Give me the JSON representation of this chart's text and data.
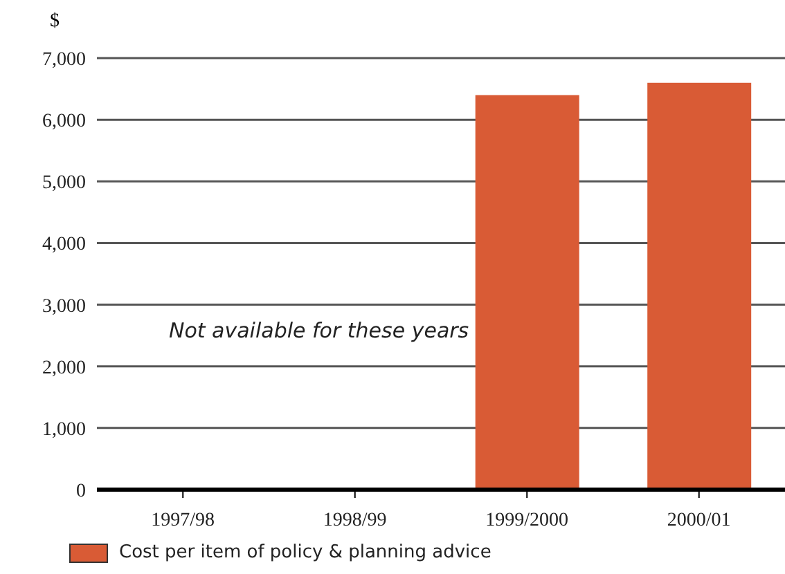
{
  "chart_data": {
    "type": "bar",
    "ylabel": "$",
    "categories": [
      "1997/98",
      "1998/99",
      "1999/2000",
      "2000/01"
    ],
    "series": [
      {
        "name": "Cost per item of policy & planning advice",
        "color": "#d95b35",
        "values": [
          null,
          null,
          6400,
          6600
        ]
      }
    ],
    "ylim": [
      0,
      7000
    ],
    "yticks": [
      0,
      {
        "value": 1000,
        "label": "1,000"
      },
      {
        "value": 2000,
        "label": "2,000"
      },
      {
        "value": 3000,
        "label": "3,000"
      },
      {
        "value": 4000,
        "label": "4,000"
      },
      {
        "value": 5000,
        "label": "5,000"
      },
      {
        "value": 6000,
        "label": "6,000"
      },
      {
        "value": 7000,
        "label": "7,000"
      }
    ],
    "grid": "y",
    "legend": "bottom left",
    "annotations": [
      "Not available for these years"
    ]
  }
}
